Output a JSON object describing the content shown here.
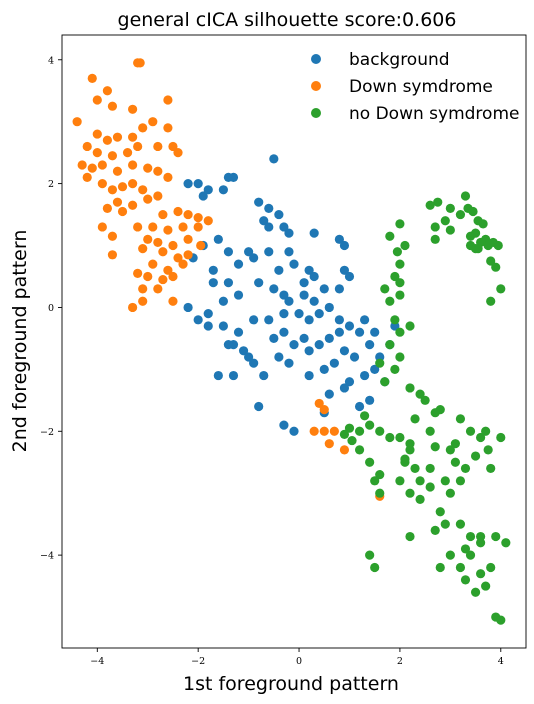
{
  "chart_data": {
    "type": "scatter",
    "title": "general cICA silhouette score:0.606",
    "xlabel": "1st foreground pattern",
    "ylabel": "2nd foreground pattern",
    "xlim": [
      -4.7,
      4.5
    ],
    "ylim": [
      -5.5,
      4.4
    ],
    "xticks": [
      -4,
      -2,
      0,
      2,
      4
    ],
    "yticks": [
      -4,
      -2,
      0,
      2,
      4
    ],
    "xtick_labels": [
      "−4",
      "−2",
      "0",
      "2",
      "4"
    ],
    "ytick_labels": [
      "−4",
      "−2",
      "0",
      "2",
      "4"
    ],
    "grid": false,
    "legend_position": "top-right",
    "series": [
      {
        "name": "background",
        "color": "#1f77b4",
        "points": [
          [
            -2.2,
            2.0
          ],
          [
            -2.0,
            2.0
          ],
          [
            -1.8,
            1.9
          ],
          [
            -1.4,
            2.1
          ],
          [
            -1.3,
            2.1
          ],
          [
            -0.5,
            2.4
          ],
          [
            -1.9,
            1.8
          ],
          [
            -1.5,
            1.9
          ],
          [
            -0.8,
            1.7
          ],
          [
            -0.6,
            1.6
          ],
          [
            -0.7,
            1.4
          ],
          [
            -0.4,
            1.5
          ],
          [
            -0.6,
            1.3
          ],
          [
            -0.3,
            1.3
          ],
          [
            -0.2,
            1.2
          ],
          [
            0.3,
            1.2
          ],
          [
            0.8,
            1.1
          ],
          [
            0.9,
            1.0
          ],
          [
            -1.6,
            1.1
          ],
          [
            -1.9,
            1.0
          ],
          [
            -1.4,
            0.9
          ],
          [
            -1.0,
            0.9
          ],
          [
            -0.6,
            0.9
          ],
          [
            -0.2,
            0.9
          ],
          [
            -1.7,
            0.6
          ],
          [
            -1.2,
            0.7
          ],
          [
            -0.9,
            0.8
          ],
          [
            -2.1,
            0.8
          ],
          [
            -1.7,
            0.4
          ],
          [
            -1.4,
            0.4
          ],
          [
            -1.5,
            0.1
          ],
          [
            -2.2,
            0.0
          ],
          [
            -1.8,
            -0.1
          ],
          [
            -1.2,
            0.2
          ],
          [
            -0.8,
            0.4
          ],
          [
            -0.4,
            0.6
          ],
          [
            -0.1,
            0.7
          ],
          [
            0.2,
            0.6
          ],
          [
            0.3,
            0.5
          ],
          [
            0.1,
            0.4
          ],
          [
            -0.5,
            0.3
          ],
          [
            -0.3,
            0.2
          ],
          [
            -0.2,
            0.1
          ],
          [
            0.1,
            0.2
          ],
          [
            0.3,
            0.1
          ],
          [
            0.5,
            0.3
          ],
          [
            0.8,
            0.3
          ],
          [
            0.9,
            0.6
          ],
          [
            1.0,
            0.5
          ],
          [
            0.6,
            0.0
          ],
          [
            0.4,
            -0.1
          ],
          [
            0.2,
            -0.2
          ],
          [
            0.0,
            -0.1
          ],
          [
            -0.3,
            -0.1
          ],
          [
            -0.6,
            -0.2
          ],
          [
            -0.9,
            -0.2
          ],
          [
            -1.2,
            -0.4
          ],
          [
            -1.5,
            -0.3
          ],
          [
            -1.8,
            -0.3
          ],
          [
            -2.0,
            -0.2
          ],
          [
            -1.3,
            -0.6
          ],
          [
            -1.4,
            -0.6
          ],
          [
            -1.1,
            -0.7
          ],
          [
            -1.0,
            -0.8
          ],
          [
            -0.5,
            -0.5
          ],
          [
            -0.3,
            -0.4
          ],
          [
            -0.1,
            -0.6
          ],
          [
            0.1,
            -0.5
          ],
          [
            0.2,
            -0.7
          ],
          [
            0.4,
            -0.6
          ],
          [
            0.6,
            -0.5
          ],
          [
            0.8,
            -0.4
          ],
          [
            0.9,
            -0.7
          ],
          [
            1.1,
            -0.8
          ],
          [
            0.7,
            -0.9
          ],
          [
            0.5,
            -1.0
          ],
          [
            0.2,
            -1.1
          ],
          [
            -0.2,
            -0.9
          ],
          [
            -0.4,
            -0.8
          ],
          [
            -0.7,
            -1.1
          ],
          [
            -0.9,
            -0.9
          ],
          [
            -1.3,
            -1.1
          ],
          [
            -1.6,
            -1.1
          ],
          [
            -0.8,
            -1.6
          ],
          [
            -0.3,
            -1.9
          ],
          [
            -0.1,
            -2.0
          ],
          [
            0.5,
            -1.7
          ],
          [
            0.6,
            -1.4
          ],
          [
            0.9,
            -1.3
          ],
          [
            1.0,
            -1.2
          ],
          [
            1.3,
            -1.1
          ],
          [
            1.5,
            -1.0
          ],
          [
            1.6,
            -0.8
          ],
          [
            1.4,
            -0.6
          ],
          [
            1.2,
            -0.4
          ],
          [
            1.0,
            -0.3
          ],
          [
            0.8,
            -0.2
          ],
          [
            1.3,
            -0.2
          ],
          [
            1.5,
            -0.4
          ],
          [
            1.8,
            -0.6
          ],
          [
            1.9,
            -0.3
          ],
          [
            1.7,
            -1.2
          ],
          [
            1.4,
            -1.5
          ],
          [
            1.2,
            -1.6
          ]
        ]
      },
      {
        "name": "Down symdrome",
        "color": "#ff7f0e",
        "points": [
          [
            -4.4,
            3.0
          ],
          [
            -4.1,
            3.7
          ],
          [
            -3.8,
            3.5
          ],
          [
            -3.2,
            3.95
          ],
          [
            -3.15,
            3.95
          ],
          [
            -4.0,
            3.35
          ],
          [
            -3.7,
            3.25
          ],
          [
            -3.3,
            3.2
          ],
          [
            -2.6,
            3.35
          ],
          [
            -4.0,
            2.8
          ],
          [
            -3.8,
            2.7
          ],
          [
            -3.6,
            2.75
          ],
          [
            -3.3,
            2.75
          ],
          [
            -3.1,
            2.9
          ],
          [
            -2.9,
            3.0
          ],
          [
            -2.6,
            2.9
          ],
          [
            -4.2,
            2.6
          ],
          [
            -4.0,
            2.5
          ],
          [
            -3.7,
            2.45
          ],
          [
            -3.4,
            2.5
          ],
          [
            -3.2,
            2.6
          ],
          [
            -2.8,
            2.6
          ],
          [
            -2.5,
            2.6
          ],
          [
            -2.4,
            2.5
          ],
          [
            -4.3,
            2.3
          ],
          [
            -4.1,
            2.25
          ],
          [
            -3.9,
            2.3
          ],
          [
            -3.6,
            2.2
          ],
          [
            -3.3,
            2.3
          ],
          [
            -3.0,
            2.25
          ],
          [
            -2.8,
            2.2
          ],
          [
            -2.6,
            2.1
          ],
          [
            -4.2,
            2.1
          ],
          [
            -3.9,
            2.0
          ],
          [
            -3.7,
            1.9
          ],
          [
            -3.5,
            1.95
          ],
          [
            -3.3,
            2.0
          ],
          [
            -3.1,
            1.9
          ],
          [
            -2.8,
            1.8
          ],
          [
            -3.6,
            1.7
          ],
          [
            -3.3,
            1.65
          ],
          [
            -3.0,
            1.75
          ],
          [
            -3.8,
            1.6
          ],
          [
            -3.5,
            1.55
          ],
          [
            -2.7,
            1.5
          ],
          [
            -2.4,
            1.55
          ],
          [
            -2.2,
            1.5
          ],
          [
            -2.0,
            1.45
          ],
          [
            -3.9,
            1.3
          ],
          [
            -3.2,
            1.3
          ],
          [
            -2.9,
            1.3
          ],
          [
            -2.6,
            1.25
          ],
          [
            -2.3,
            1.3
          ],
          [
            -2.0,
            1.3
          ],
          [
            -1.8,
            1.4
          ],
          [
            -3.7,
            1.15
          ],
          [
            -3.0,
            1.1
          ],
          [
            -2.8,
            1.05
          ],
          [
            -2.5,
            1.0
          ],
          [
            -2.2,
            1.1
          ],
          [
            -1.95,
            1.0
          ],
          [
            -3.1,
            0.95
          ],
          [
            -2.7,
            0.9
          ],
          [
            -2.4,
            0.8
          ],
          [
            -2.2,
            0.85
          ],
          [
            -3.7,
            0.85
          ],
          [
            -2.9,
            0.7
          ],
          [
            -2.6,
            0.6
          ],
          [
            -2.3,
            0.7
          ],
          [
            -3.2,
            0.55
          ],
          [
            -3.0,
            0.5
          ],
          [
            -2.7,
            0.45
          ],
          [
            -2.5,
            0.5
          ],
          [
            -3.1,
            0.3
          ],
          [
            -2.8,
            0.3
          ],
          [
            -3.1,
            0.1
          ],
          [
            -2.5,
            0.1
          ],
          [
            -3.3,
            0.0
          ],
          [
            0.4,
            -1.55
          ],
          [
            0.5,
            -1.65
          ],
          [
            0.3,
            -2.0
          ],
          [
            0.5,
            -2.0
          ],
          [
            0.7,
            -2.0
          ],
          [
            0.6,
            -2.2
          ],
          [
            0.9,
            -2.3
          ],
          [
            1.6,
            -3.05
          ]
        ]
      },
      {
        "name": "no Down symdrome",
        "color": "#2ca02c",
        "points": [
          [
            2.6,
            1.65
          ],
          [
            2.75,
            1.7
          ],
          [
            3.0,
            1.6
          ],
          [
            3.3,
            1.8
          ],
          [
            3.35,
            1.6
          ],
          [
            3.45,
            1.55
          ],
          [
            3.2,
            1.5
          ],
          [
            2.9,
            1.4
          ],
          [
            3.0,
            1.25
          ],
          [
            2.7,
            1.3
          ],
          [
            2.7,
            1.1
          ],
          [
            3.55,
            1.4
          ],
          [
            3.65,
            1.35
          ],
          [
            3.7,
            1.1
          ],
          [
            3.5,
            1.2
          ],
          [
            3.4,
            1.0
          ],
          [
            3.5,
            0.95
          ],
          [
            3.6,
            1.05
          ],
          [
            3.75,
            1.0
          ],
          [
            3.85,
            1.05
          ],
          [
            3.95,
            1.0
          ],
          [
            3.8,
            0.75
          ],
          [
            3.9,
            0.65
          ],
          [
            3.4,
            1.15
          ],
          [
            3.55,
            0.95
          ],
          [
            4.0,
            0.3
          ],
          [
            3.8,
            0.1
          ],
          [
            2.0,
            1.35
          ],
          [
            1.8,
            1.15
          ],
          [
            2.1,
            1.0
          ],
          [
            2.0,
            0.7
          ],
          [
            1.95,
            0.9
          ],
          [
            1.9,
            0.5
          ],
          [
            2.0,
            0.4
          ],
          [
            1.7,
            0.3
          ],
          [
            1.8,
            0.1
          ],
          [
            2.0,
            0.2
          ],
          [
            1.9,
            -0.2
          ],
          [
            2.0,
            -0.4
          ],
          [
            2.2,
            -0.3
          ],
          [
            1.8,
            -0.6
          ],
          [
            2.0,
            -0.8
          ],
          [
            1.6,
            -0.9
          ],
          [
            1.9,
            -1.0
          ],
          [
            1.7,
            -1.2
          ],
          [
            2.2,
            -1.3
          ],
          [
            2.4,
            -1.4
          ],
          [
            2.5,
            -1.5
          ],
          [
            2.7,
            -1.7
          ],
          [
            2.8,
            -1.65
          ],
          [
            3.2,
            -1.8
          ],
          [
            2.3,
            -1.8
          ],
          [
            2.6,
            -2.0
          ],
          [
            2.0,
            -2.1
          ],
          [
            1.8,
            -2.1
          ],
          [
            1.6,
            -2.0
          ],
          [
            1.4,
            -1.9
          ],
          [
            1.3,
            -1.75
          ],
          [
            1.2,
            -2.0
          ],
          [
            1.0,
            -1.95
          ],
          [
            0.9,
            -2.05
          ],
          [
            1.05,
            -2.15
          ],
          [
            1.2,
            -2.3
          ],
          [
            1.4,
            -2.5
          ],
          [
            1.6,
            -2.7
          ],
          [
            2.2,
            -2.3
          ],
          [
            2.1,
            -2.5
          ],
          [
            2.3,
            -2.6
          ],
          [
            2.0,
            -2.8
          ],
          [
            2.2,
            -3.0
          ],
          [
            2.4,
            -3.1
          ],
          [
            2.6,
            -2.9
          ],
          [
            2.8,
            -3.3
          ],
          [
            3.0,
            -3.0
          ],
          [
            2.7,
            -3.6
          ],
          [
            2.9,
            -3.5
          ],
          [
            3.2,
            -3.5
          ],
          [
            3.4,
            -3.7
          ],
          [
            3.6,
            -3.8
          ],
          [
            3.6,
            -3.7
          ],
          [
            3.9,
            -3.7
          ],
          [
            4.1,
            -3.8
          ],
          [
            3.3,
            -3.9
          ],
          [
            3.4,
            -4.0
          ],
          [
            3.2,
            -4.2
          ],
          [
            3.3,
            -4.4
          ],
          [
            3.5,
            -4.6
          ],
          [
            3.7,
            -4.5
          ],
          [
            3.8,
            -4.2
          ],
          [
            3.6,
            -4.3
          ],
          [
            3.0,
            -4.0
          ],
          [
            2.8,
            -4.2
          ],
          [
            1.4,
            -4.0
          ],
          [
            1.5,
            -4.2
          ],
          [
            2.2,
            -3.7
          ],
          [
            3.9,
            -5.0
          ],
          [
            4.0,
            -5.05
          ],
          [
            1.5,
            -2.8
          ],
          [
            1.6,
            -3.0
          ],
          [
            3.1,
            -2.5
          ],
          [
            3.2,
            -2.8
          ],
          [
            3.4,
            -2.0
          ],
          [
            3.6,
            -2.1
          ],
          [
            3.7,
            -2.0
          ],
          [
            3.75,
            -2.3
          ],
          [
            3.8,
            -2.6
          ],
          [
            4.0,
            -2.1
          ],
          [
            3.5,
            -2.4
          ],
          [
            3.3,
            -2.6
          ],
          [
            3.1,
            -2.2
          ],
          [
            2.9,
            -2.8
          ],
          [
            2.6,
            -2.6
          ],
          [
            2.4,
            -2.8
          ],
          [
            2.2,
            -2.2
          ],
          [
            2.1,
            -2.45
          ],
          [
            2.7,
            -2.25
          ],
          [
            3.0,
            -2.3
          ]
        ]
      }
    ]
  }
}
